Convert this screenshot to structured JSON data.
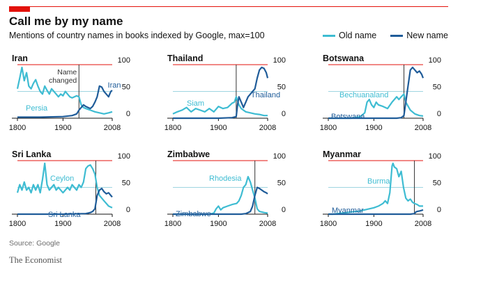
{
  "header": {
    "title": "Call me by my name",
    "subtitle": "Mentions of country names in books indexed by Google, max=100"
  },
  "legend": {
    "old_label": "Old name",
    "new_label": "New name"
  },
  "colors": {
    "old": "#3ebcd2",
    "new": "#1f5c99",
    "accent": "#e3120b",
    "grid": "#9fd5e0"
  },
  "footer": {
    "source": "Source: Google",
    "brand": "The Economist"
  },
  "chart_data": [
    {
      "type": "line",
      "title": "Iran",
      "xlim": [
        1800,
        2008
      ],
      "ylim": [
        0,
        100
      ],
      "xticks": [
        "1800",
        "1900",
        "2008"
      ],
      "yticks": [
        "0",
        "50",
        "100"
      ],
      "change_year": 1935,
      "annotation": [
        "Name",
        "changed"
      ],
      "series": [
        {
          "name": "Persia",
          "x": [
            1800,
            1805,
            1810,
            1815,
            1820,
            1825,
            1830,
            1835,
            1840,
            1845,
            1850,
            1855,
            1860,
            1865,
            1870,
            1875,
            1880,
            1885,
            1890,
            1895,
            1900,
            1905,
            1910,
            1915,
            1920,
            1925,
            1930,
            1935,
            1940,
            1945,
            1950,
            1960,
            1970,
            1980,
            1990,
            2000,
            2008
          ],
          "y": [
            55,
            75,
            95,
            70,
            85,
            60,
            55,
            65,
            72,
            60,
            50,
            45,
            60,
            52,
            45,
            55,
            50,
            45,
            40,
            45,
            42,
            50,
            45,
            40,
            38,
            40,
            42,
            40,
            25,
            20,
            18,
            15,
            12,
            10,
            8,
            10,
            12
          ]
        },
        {
          "name": "Iran",
          "x": [
            1800,
            1850,
            1900,
            1920,
            1930,
            1935,
            1940,
            1945,
            1950,
            1955,
            1960,
            1965,
            1970,
            1975,
            1980,
            1985,
            1990,
            1995,
            2000,
            2005,
            2008
          ],
          "y": [
            2,
            2,
            3,
            5,
            8,
            15,
            20,
            25,
            22,
            20,
            18,
            22,
            30,
            40,
            60,
            58,
            50,
            45,
            40,
            50,
            52
          ]
        }
      ]
    },
    {
      "type": "line",
      "title": "Thailand",
      "xlim": [
        1800,
        2008
      ],
      "ylim": [
        0,
        100
      ],
      "xticks": [
        "1800",
        "1900",
        "2008"
      ],
      "yticks": [
        "0",
        "50",
        "100"
      ],
      "change_year": 1939,
      "series": [
        {
          "name": "Siam",
          "x": [
            1800,
            1810,
            1820,
            1830,
            1840,
            1850,
            1860,
            1870,
            1880,
            1890,
            1900,
            1910,
            1920,
            1930,
            1935,
            1939,
            1945,
            1950,
            1960,
            1970,
            1980,
            1990,
            2000,
            2008
          ],
          "y": [
            8,
            12,
            15,
            20,
            12,
            18,
            15,
            12,
            18,
            12,
            22,
            18,
            20,
            28,
            30,
            40,
            25,
            18,
            12,
            10,
            8,
            7,
            5,
            5
          ]
        },
        {
          "name": "Thailand",
          "x": [
            1800,
            1900,
            1930,
            1939,
            1942,
            1945,
            1950,
            1955,
            1960,
            1965,
            1970,
            1975,
            1980,
            1985,
            1990,
            1995,
            2000,
            2005,
            2008
          ],
          "y": [
            0,
            0,
            1,
            3,
            25,
            40,
            30,
            20,
            30,
            40,
            45,
            50,
            55,
            75,
            90,
            95,
            93,
            85,
            75
          ]
        }
      ]
    },
    {
      "type": "line",
      "title": "Botswana",
      "xlim": [
        1800,
        2008
      ],
      "ylim": [
        0,
        100
      ],
      "xticks": [
        "1800",
        "1900",
        "2008"
      ],
      "yticks": [
        "0",
        "50",
        "100"
      ],
      "change_year": 1966,
      "series": [
        {
          "name": "Bechuanaland",
          "x": [
            1800,
            1850,
            1860,
            1870,
            1880,
            1885,
            1890,
            1895,
            1900,
            1905,
            1910,
            1920,
            1930,
            1940,
            1950,
            1955,
            1960,
            1966,
            1970,
            1980,
            1990,
            2000,
            2008
          ],
          "y": [
            0,
            0,
            1,
            3,
            10,
            30,
            35,
            25,
            20,
            30,
            25,
            22,
            18,
            30,
            40,
            35,
            40,
            45,
            30,
            15,
            8,
            5,
            4
          ]
        },
        {
          "name": "Botswana",
          "x": [
            1800,
            1900,
            1950,
            1960,
            1966,
            1970,
            1975,
            1980,
            1985,
            1990,
            1995,
            2000,
            2005,
            2008
          ],
          "y": [
            0,
            0,
            0,
            1,
            5,
            30,
            60,
            90,
            95,
            90,
            85,
            88,
            82,
            75
          ]
        }
      ]
    },
    {
      "type": "line",
      "title": "Sri Lanka",
      "xlim": [
        1800,
        2008
      ],
      "ylim": [
        0,
        100
      ],
      "xticks": [
        "1800",
        "1900",
        "2008"
      ],
      "yticks": [
        "0",
        "50",
        "100"
      ],
      "change_year": 1972,
      "series": [
        {
          "name": "Ceylon",
          "x": [
            1800,
            1805,
            1810,
            1815,
            1820,
            1825,
            1830,
            1835,
            1840,
            1845,
            1850,
            1855,
            1860,
            1865,
            1870,
            1875,
            1880,
            1885,
            1890,
            1895,
            1900,
            1905,
            1910,
            1915,
            1920,
            1925,
            1930,
            1935,
            1940,
            1945,
            1950,
            1955,
            1960,
            1965,
            1970,
            1975,
            1980,
            1990,
            2000,
            2008
          ],
          "y": [
            40,
            55,
            45,
            60,
            45,
            50,
            40,
            55,
            45,
            55,
            40,
            65,
            95,
            55,
            45,
            50,
            55,
            45,
            50,
            45,
            40,
            45,
            50,
            45,
            55,
            50,
            45,
            55,
            50,
            60,
            85,
            90,
            92,
            85,
            75,
            50,
            35,
            25,
            15,
            12
          ]
        },
        {
          "name": "Sri Lanka",
          "x": [
            1800,
            1900,
            1950,
            1960,
            1965,
            1970,
            1972,
            1975,
            1980,
            1985,
            1990,
            1995,
            2000,
            2005,
            2008
          ],
          "y": [
            0,
            0,
            1,
            3,
            5,
            10,
            20,
            35,
            45,
            48,
            42,
            38,
            40,
            35,
            32
          ]
        }
      ]
    },
    {
      "type": "line",
      "title": "Zimbabwe",
      "xlim": [
        1800,
        2008
      ],
      "ylim": [
        0,
        100
      ],
      "xticks": [
        "1800",
        "1900",
        "2008"
      ],
      "yticks": [
        "0",
        "50",
        "100"
      ],
      "change_year": 1980,
      "series": [
        {
          "name": "Rhodesia",
          "x": [
            1800,
            1880,
            1890,
            1895,
            1900,
            1905,
            1910,
            1920,
            1930,
            1940,
            1945,
            1950,
            1955,
            1960,
            1965,
            1970,
            1975,
            1980,
            1985,
            1990,
            2000,
            2008
          ],
          "y": [
            0,
            0,
            2,
            10,
            15,
            8,
            12,
            15,
            18,
            20,
            25,
            35,
            50,
            55,
            70,
            60,
            45,
            30,
            10,
            5,
            3,
            2
          ]
        },
        {
          "name": "Zimbabwe",
          "x": [
            1800,
            1900,
            1950,
            1960,
            1965,
            1970,
            1975,
            1980,
            1985,
            1990,
            1995,
            2000,
            2005,
            2008
          ],
          "y": [
            0,
            0,
            0,
            1,
            3,
            5,
            15,
            35,
            50,
            48,
            45,
            42,
            40,
            38
          ]
        }
      ]
    },
    {
      "type": "line",
      "title": "Myanmar",
      "xlim": [
        1800,
        2008
      ],
      "ylim": [
        0,
        100
      ],
      "xticks": [
        "1800",
        "1900",
        "2008"
      ],
      "yticks": [
        "0",
        "50",
        "100"
      ],
      "change_year": 1989,
      "series": [
        {
          "name": "Burma",
          "x": [
            1800,
            1810,
            1820,
            1830,
            1840,
            1850,
            1860,
            1870,
            1880,
            1890,
            1900,
            1910,
            1920,
            1925,
            1930,
            1935,
            1940,
            1942,
            1945,
            1950,
            1955,
            1960,
            1965,
            1970,
            1975,
            1980,
            1985,
            1989,
            1995,
            2000,
            2008
          ],
          "y": [
            0,
            0,
            1,
            2,
            3,
            4,
            5,
            6,
            8,
            10,
            12,
            15,
            20,
            25,
            20,
            40,
            90,
            95,
            88,
            85,
            70,
            80,
            50,
            30,
            25,
            28,
            22,
            20,
            18,
            15,
            15
          ]
        },
        {
          "name": "Myanmar",
          "x": [
            1800,
            1900,
            1950,
            1980,
            1989,
            1992,
            1995,
            2000,
            2005,
            2008
          ],
          "y": [
            0,
            0,
            0,
            0,
            1,
            4,
            5,
            6,
            7,
            8
          ]
        }
      ]
    }
  ]
}
